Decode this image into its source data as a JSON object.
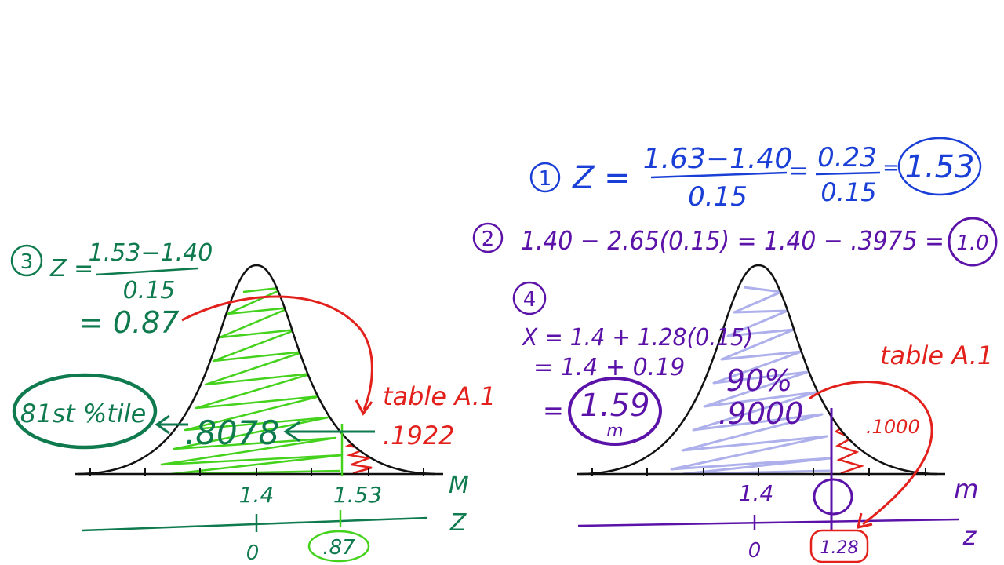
{
  "colors": {
    "blue": "#1a3fd6",
    "purple": "#5b12a8",
    "green_dark": "#0e7a4e",
    "green_light": "#44d21c",
    "red": "#e3211c",
    "lavender": "#aeb0ec",
    "black": "#111111"
  },
  "step1": {
    "marker": "1",
    "lhs": "Z =",
    "numerator": "1.63−1.40",
    "denominator": "0.15",
    "eq1": "=",
    "numerator2": "0.23",
    "denominator2": "0.15",
    "eq2": "=",
    "result": "1.53"
  },
  "step2": {
    "marker": "2",
    "expression": "1.40 − 2.65(0.15) = 1.40 − .3975 =",
    "result": "1.0"
  },
  "step3": {
    "marker": "3",
    "lhs": "Z =",
    "numerator": "1.53−1.40",
    "denominator": "0.15",
    "result_line": "= 0.87",
    "percentile": "81st %tile",
    "area_left": ".8078",
    "area_right": ".1922",
    "table_note": "table A.1",
    "axis_m_label": "M",
    "axis_z_label": "Z",
    "m_ticks": [
      "1.4",
      "1.53"
    ],
    "z_ticks": [
      "0",
      ".87"
    ]
  },
  "step4": {
    "marker": "4",
    "line1": "X = 1.4 + 1.28(0.15)",
    "line2": "= 1.4 + 0.19",
    "line3_prefix": "=",
    "result_value": "1.59",
    "result_unit": "m",
    "area_percent": "90%",
    "area_left": ".9000",
    "area_right": ".1000",
    "table_note": "table A.1",
    "axis_m_label": "m",
    "axis_z_label": "z",
    "m_ticks": [
      "1.4"
    ],
    "z_ticks": [
      "0",
      "1.28"
    ]
  }
}
